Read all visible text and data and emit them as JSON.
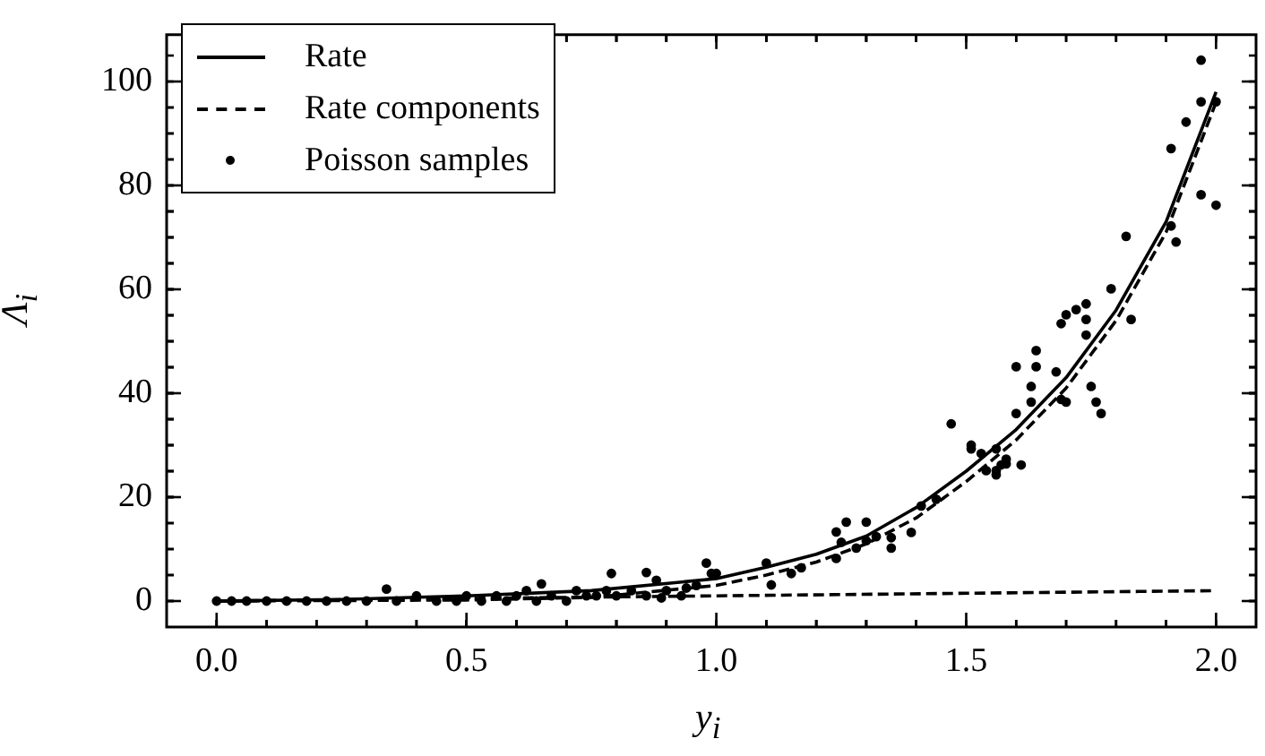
{
  "chart_data": {
    "type": "scatter",
    "xlabel": "y$_{i}$",
    "ylabel": "Λ$_{i}$",
    "xlim": [
      -0.1,
      2.08
    ],
    "ylim": [
      -5,
      109
    ],
    "xticks": [
      {
        "value": 0,
        "label": "0.0"
      },
      {
        "value": 0.5,
        "label": "0.5"
      },
      {
        "value": 1,
        "label": "1.0"
      },
      {
        "value": 1.5,
        "label": "1.5"
      },
      {
        "value": 2,
        "label": "2.0"
      }
    ],
    "yticks": [
      0,
      20,
      40,
      60,
      80,
      100
    ],
    "grid": false,
    "legend": "top left",
    "series": [
      {
        "name": "Rate",
        "type": "line",
        "line_style": "solid",
        "marker": "none",
        "color": "#000000",
        "x": [
          0,
          0.25,
          0.5,
          0.75,
          1.0,
          1.1,
          1.2,
          1.3,
          1.4,
          1.5,
          1.6,
          1.7,
          1.8,
          1.9,
          2.0
        ],
        "values": [
          0,
          0.3,
          1.0,
          2.0,
          4.3,
          6.5,
          9,
          12.5,
          18,
          25,
          33,
          43,
          56,
          73,
          98
        ]
      },
      {
        "name": "Rate components",
        "type": "line",
        "line_style": "dashed",
        "marker": "none",
        "color": "#000000",
        "x": [
          0,
          0.25,
          0.5,
          0.75,
          1.0,
          1.1,
          1.2,
          1.3,
          1.4,
          1.5,
          1.6,
          1.7,
          1.8,
          1.9,
          2.0
        ],
        "values": [
          0,
          0.1,
          0.2,
          0.7,
          3,
          5,
          7.5,
          11,
          16,
          23,
          31,
          41,
          54,
          71,
          96
        ]
      },
      {
        "type": "line",
        "line_style": "dashed",
        "marker": "none",
        "color": "#000000",
        "x": [
          0,
          2
        ],
        "values": [
          0,
          2
        ]
      },
      {
        "name": "Poisson samples",
        "type": "scatter",
        "marker": "circle",
        "color": "#000000",
        "x": [
          0,
          0.03,
          0.06,
          0.1,
          0.14,
          0.18,
          0.22,
          0.26,
          0.3,
          0.34,
          0.36,
          0.4,
          0.44,
          0.48,
          0.5,
          0.53,
          0.56,
          0.58,
          0.6,
          0.62,
          0.64,
          0.65,
          0.67,
          0.7,
          0.72,
          0.74,
          0.76,
          0.78,
          0.79,
          0.8,
          0.83,
          0.86,
          0.86,
          0.88,
          0.89,
          0.9,
          0.93,
          0.94,
          0.96,
          0.98,
          0.99,
          1.0,
          1.1,
          1.11,
          1.15,
          1.17,
          1.24,
          1.24,
          1.25,
          1.26,
          1.28,
          1.3,
          1.3,
          1.32,
          1.35,
          1.35,
          1.39,
          1.41,
          1.44,
          1.47,
          1.51,
          1.51,
          1.53,
          1.54,
          1.56,
          1.56,
          1.56,
          1.57,
          1.58,
          1.58,
          1.6,
          1.6,
          1.61,
          1.63,
          1.63,
          1.64,
          1.64,
          1.68,
          1.69,
          1.69,
          1.7,
          1.7,
          1.72,
          1.74,
          1.74,
          1.74,
          1.75,
          1.76,
          1.77,
          1.79,
          1.82,
          1.83,
          1.91,
          1.91,
          1.92,
          1.94,
          1.97,
          1.97,
          1.97,
          2.0,
          2.0
        ],
        "values": [
          0,
          0,
          0,
          0,
          0,
          0,
          0,
          0,
          0,
          2.3,
          0,
          1,
          0,
          0,
          1,
          0,
          1,
          0,
          1,
          2,
          0,
          3.3,
          1,
          0,
          2,
          1,
          1,
          2,
          5.3,
          1,
          2,
          5.5,
          1,
          4,
          0.6,
          2,
          1,
          2.5,
          3,
          7.3,
          5.3,
          5.3,
          7.3,
          3.1,
          5.3,
          6.4,
          8.2,
          13.3,
          11.3,
          15.2,
          10.2,
          15.2,
          11.6,
          12.4,
          10.2,
          12.2,
          13.2,
          18.3,
          19.6,
          34.1,
          30,
          29.3,
          28.4,
          25.1,
          29.3,
          25.1,
          24.3,
          26.2,
          27.3,
          26.4,
          36.1,
          45.1,
          26.2,
          41.3,
          38.3,
          48.2,
          45.1,
          44.1,
          38.8,
          53.4,
          38.3,
          55.1,
          56.1,
          57.2,
          54.2,
          51.2,
          41.3,
          38.3,
          36.1,
          60.1,
          70.2,
          54.2,
          72.2,
          87.1,
          69.1,
          92.2,
          96.1,
          104.1,
          78.2,
          96.1,
          76.2
        ]
      }
    ]
  }
}
